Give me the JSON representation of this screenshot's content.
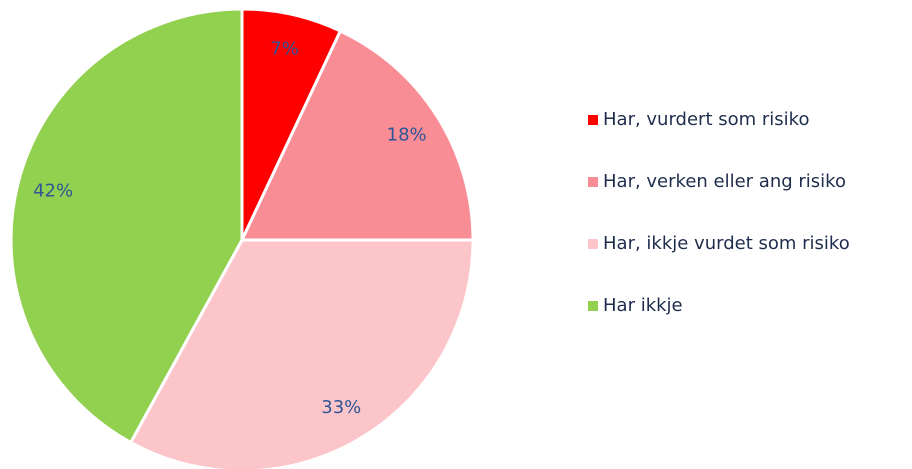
{
  "chart_data": {
    "type": "pie",
    "categories": [
      "Har, vurdert som risiko",
      "Har, verken eller ang risiko",
      "Har, ikkje vurdet som risiko",
      "Har ikkje"
    ],
    "values": [
      7,
      18,
      33,
      42
    ],
    "value_labels": [
      "7%",
      "18%",
      "33%",
      "42%"
    ],
    "colors": [
      "#ff0000",
      "#f98d96",
      "#fcc5ca",
      "#92d050"
    ],
    "legend": "right"
  }
}
